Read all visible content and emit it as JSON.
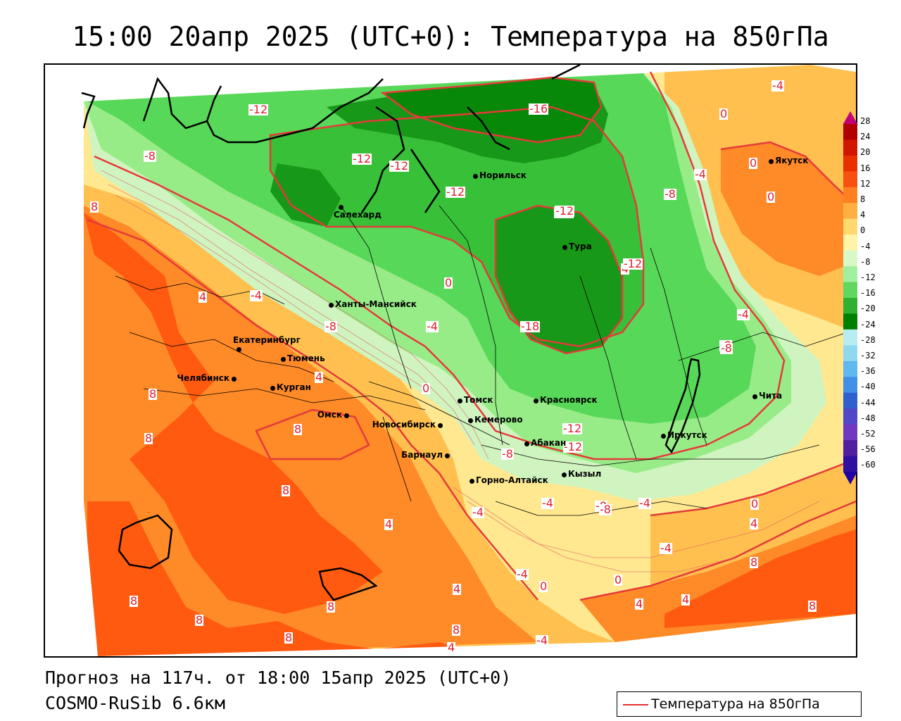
{
  "title": "15:00 20апр 2025 (UTC+0): Температура на 850гПа",
  "footer": {
    "forecast": "Прогноз на 117ч. от 18:00 15апр 2025 (UTC+0)",
    "model": "COSMO-RuSib 6.6км"
  },
  "legend": {
    "label": "Температура на 850гПа",
    "line_color": "#e53030"
  },
  "colorbar": {
    "labels": [
      "28",
      "24",
      "20",
      "16",
      "12",
      "8",
      "4",
      "0",
      "-4",
      "-8",
      "-12",
      "-16",
      "-20",
      "-24",
      "-28",
      "-32",
      "-36",
      "-40",
      "-44",
      "-48",
      "-52",
      "-56",
      "-60"
    ],
    "colors": [
      "#c0007a",
      "#b00000",
      "#d01500",
      "#e83000",
      "#f85010",
      "#ff8020",
      "#ffb040",
      "#ffd870",
      "#fff4a8",
      "#d8f8c8",
      "#a0f0a0",
      "#60d860",
      "#30b030",
      "#008000",
      "#b8ecf0",
      "#90d8f0",
      "#60b8f0",
      "#4090e8",
      "#3060d0",
      "#5048c8",
      "#7038c0",
      "#5020a0",
      "#3010a0",
      "#2000a0"
    ]
  },
  "cities": [
    {
      "name": "Якутск"
    },
    {
      "name": "Норильск"
    },
    {
      "name": "Салехард"
    },
    {
      "name": "Тура"
    },
    {
      "name": "Ханты-Мансийск"
    },
    {
      "name": "Екатеринбург"
    },
    {
      "name": "Тюмень"
    },
    {
      "name": "Челябинск"
    },
    {
      "name": "Курган"
    },
    {
      "name": "Омск"
    },
    {
      "name": "Новосибирск"
    },
    {
      "name": "Томск"
    },
    {
      "name": "Кемерово"
    },
    {
      "name": "Красноярск"
    },
    {
      "name": "Барнаул"
    },
    {
      "name": "Абакан"
    },
    {
      "name": "Кызыл"
    },
    {
      "name": "Горно-Алтайск"
    },
    {
      "name": "Иркутск"
    },
    {
      "name": "Чита"
    }
  ],
  "contour_labels": [
    "-12",
    "-16",
    "-12",
    "-12",
    "-8",
    "-12",
    "-12",
    "-8",
    "-4",
    "0",
    "-4",
    "0",
    "0",
    "8",
    "4",
    "-4",
    "0",
    "4",
    "-8",
    "-4",
    "-8",
    "-12",
    "-12",
    "-12",
    "-18",
    "-4",
    "-8",
    "4",
    "0",
    "8",
    "8",
    "8",
    "8",
    "4",
    "-8",
    "-12",
    "-8",
    "-4",
    "-4",
    "-8",
    "-4",
    "-4",
    "0",
    "4",
    "4",
    "0",
    "-4",
    "8",
    "4",
    "8",
    "8",
    "8",
    "8",
    "4",
    "-4",
    "8",
    "8",
    "4",
    "0"
  ],
  "map_colors": {
    "warm_deep": "#ff5a10",
    "warm": "#ff8a28",
    "warm_light": "#ffc050",
    "yellow": "#ffe890",
    "pale": "#fff8c0",
    "green_pale": "#d0f4c0",
    "green_light": "#98ec88",
    "green": "#58d858",
    "green_mid": "#38c038",
    "green_dark": "#189818",
    "green_darkest": "#088808"
  }
}
